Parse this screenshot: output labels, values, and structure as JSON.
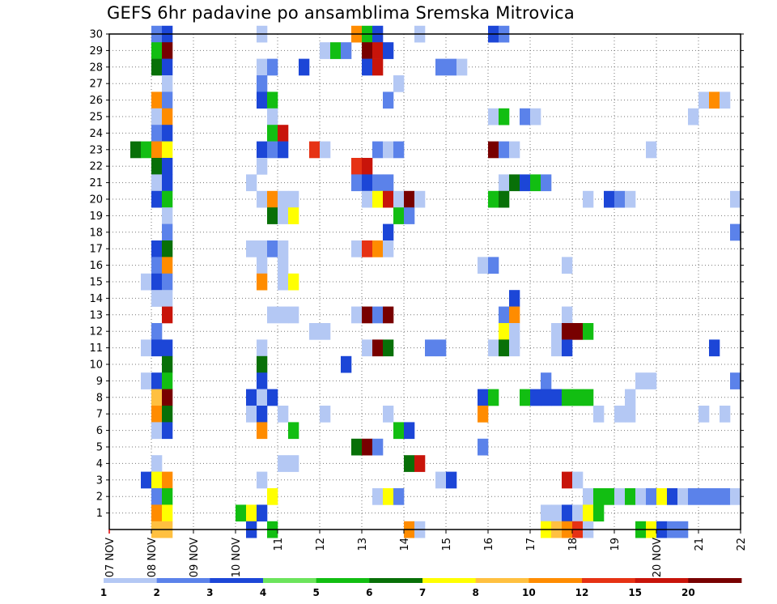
{
  "chart_data": {
    "type": "heatmap",
    "title": "GEFS 6hr padavine po ansamblima Sremska Mitrovica",
    "x_ticks": [
      "07 NOV",
      "08 NOV",
      "09 NOV",
      "10 NOV",
      "11",
      "12",
      "13",
      "14",
      "15",
      "16",
      "17",
      "18",
      "19",
      "20 NOV",
      "21",
      "22"
    ],
    "y_ticks": [
      "1",
      "2",
      "3",
      "4",
      "5",
      "6",
      "7",
      "8",
      "9",
      "10",
      "11",
      "12",
      "13",
      "14",
      "15",
      "16",
      "17",
      "18",
      "19",
      "20",
      "21",
      "22",
      "23",
      "24",
      "25",
      "26",
      "27",
      "28",
      "29",
      "30"
    ],
    "xlim": [
      0,
      15
    ],
    "ylim": [
      0,
      30
    ],
    "grid": true,
    "colorbar": {
      "labels": [
        "1",
        "2",
        "3",
        "4",
        "5",
        "6",
        "7",
        "8",
        "10",
        "12",
        "15",
        "20"
      ],
      "colors": [
        "#b4c8f4",
        "#5b82ea",
        "#1c46d7",
        "#6ce45c",
        "#12be12",
        "#087008",
        "#ffff00",
        "#ffc040",
        "#ff8c00",
        "#e63214",
        "#c8140a",
        "#780000"
      ]
    },
    "cells": [
      [
        1.0,
        30,
        1
      ],
      [
        1.25,
        30,
        2
      ],
      [
        3.5,
        30,
        0
      ],
      [
        5.75,
        30,
        8
      ],
      [
        6.0,
        30,
        4
      ],
      [
        6.25,
        30,
        2
      ],
      [
        7.25,
        30,
        0
      ],
      [
        9.0,
        30,
        2
      ],
      [
        9.25,
        30,
        1
      ],
      [
        1.0,
        29,
        4
      ],
      [
        1.25,
        29,
        11
      ],
      [
        5.0,
        29,
        0
      ],
      [
        5.25,
        29,
        4
      ],
      [
        5.5,
        29,
        1
      ],
      [
        6.0,
        29,
        11
      ],
      [
        6.25,
        29,
        10
      ],
      [
        6.5,
        29,
        2
      ],
      [
        1.0,
        28,
        5
      ],
      [
        1.25,
        28,
        2
      ],
      [
        3.5,
        28,
        0
      ],
      [
        3.75,
        28,
        1
      ],
      [
        4.5,
        28,
        2
      ],
      [
        6.0,
        28,
        2
      ],
      [
        6.25,
        28,
        10
      ],
      [
        7.75,
        28,
        1
      ],
      [
        8.0,
        28,
        1
      ],
      [
        8.25,
        28,
        0
      ],
      [
        1.25,
        27,
        0
      ],
      [
        3.5,
        27,
        1
      ],
      [
        6.75,
        27,
        0
      ],
      [
        1.0,
        26,
        8
      ],
      [
        1.25,
        26,
        1
      ],
      [
        3.5,
        26,
        2
      ],
      [
        3.75,
        26,
        4
      ],
      [
        6.5,
        26,
        1
      ],
      [
        14.0,
        26,
        0
      ],
      [
        14.25,
        26,
        8
      ],
      [
        14.5,
        26,
        0
      ],
      [
        1.0,
        25,
        0
      ],
      [
        1.25,
        25,
        8
      ],
      [
        3.75,
        25,
        0
      ],
      [
        9.0,
        25,
        0
      ],
      [
        9.25,
        25,
        4
      ],
      [
        9.75,
        25,
        1
      ],
      [
        10.0,
        25,
        0
      ],
      [
        13.75,
        25,
        0
      ],
      [
        1.0,
        24,
        1
      ],
      [
        1.25,
        24,
        2
      ],
      [
        3.75,
        24,
        4
      ],
      [
        4.0,
        24,
        10
      ],
      [
        0.5,
        23,
        5
      ],
      [
        0.75,
        23,
        4
      ],
      [
        1.0,
        23,
        8
      ],
      [
        1.25,
        23,
        6
      ],
      [
        3.5,
        23,
        2
      ],
      [
        3.75,
        23,
        1
      ],
      [
        4.0,
        23,
        2
      ],
      [
        4.75,
        23,
        9
      ],
      [
        5.0,
        23,
        0
      ],
      [
        6.25,
        23,
        1
      ],
      [
        6.5,
        23,
        0
      ],
      [
        6.75,
        23,
        1
      ],
      [
        9.0,
        23,
        11
      ],
      [
        9.25,
        23,
        1
      ],
      [
        9.5,
        23,
        0
      ],
      [
        12.75,
        23,
        0
      ],
      [
        1.0,
        22,
        5
      ],
      [
        1.25,
        22,
        2
      ],
      [
        3.5,
        22,
        0
      ],
      [
        5.75,
        22,
        9
      ],
      [
        6.0,
        22,
        10
      ],
      [
        1.0,
        21,
        0
      ],
      [
        1.25,
        21,
        2
      ],
      [
        3.25,
        21,
        0
      ],
      [
        5.75,
        21,
        1
      ],
      [
        6.0,
        21,
        2
      ],
      [
        6.25,
        21,
        1
      ],
      [
        6.5,
        21,
        1
      ],
      [
        9.25,
        21,
        0
      ],
      [
        9.5,
        21,
        5
      ],
      [
        9.75,
        21,
        2
      ],
      [
        10.0,
        21,
        4
      ],
      [
        10.25,
        21,
        1
      ],
      [
        1.0,
        20,
        2
      ],
      [
        1.25,
        20,
        4
      ],
      [
        3.5,
        20,
        0
      ],
      [
        3.75,
        20,
        8
      ],
      [
        4.0,
        20,
        0
      ],
      [
        4.25,
        20,
        0
      ],
      [
        6.0,
        20,
        0
      ],
      [
        6.25,
        20,
        6
      ],
      [
        6.5,
        20,
        10
      ],
      [
        6.75,
        20,
        0
      ],
      [
        7.0,
        20,
        11
      ],
      [
        7.25,
        20,
        0
      ],
      [
        9.0,
        20,
        4
      ],
      [
        9.25,
        20,
        5
      ],
      [
        11.25,
        20,
        0
      ],
      [
        11.75,
        20,
        2
      ],
      [
        12.0,
        20,
        1
      ],
      [
        12.25,
        20,
        0
      ],
      [
        14.75,
        20,
        0
      ],
      [
        1.25,
        19,
        0
      ],
      [
        3.75,
        19,
        5
      ],
      [
        4.0,
        19,
        0
      ],
      [
        4.25,
        19,
        6
      ],
      [
        6.75,
        19,
        4
      ],
      [
        7.0,
        19,
        1
      ],
      [
        1.25,
        18,
        1
      ],
      [
        6.5,
        18,
        2
      ],
      [
        14.75,
        18,
        1
      ],
      [
        1.0,
        17,
        2
      ],
      [
        1.25,
        17,
        5
      ],
      [
        3.25,
        17,
        0
      ],
      [
        3.5,
        17,
        0
      ],
      [
        3.75,
        17,
        1
      ],
      [
        4.0,
        17,
        0
      ],
      [
        5.75,
        17,
        0
      ],
      [
        6.0,
        17,
        9
      ],
      [
        6.25,
        17,
        8
      ],
      [
        6.5,
        17,
        0
      ],
      [
        1.0,
        16,
        1
      ],
      [
        1.25,
        16,
        8
      ],
      [
        3.5,
        16,
        0
      ],
      [
        4.0,
        16,
        0
      ],
      [
        8.75,
        16,
        0
      ],
      [
        9.0,
        16,
        1
      ],
      [
        10.75,
        16,
        0
      ],
      [
        0.75,
        15,
        0
      ],
      [
        1.0,
        15,
        2
      ],
      [
        1.25,
        15,
        1
      ],
      [
        3.5,
        15,
        8
      ],
      [
        4.0,
        15,
        0
      ],
      [
        4.25,
        15,
        6
      ],
      [
        1.0,
        14,
        0
      ],
      [
        1.25,
        14,
        0
      ],
      [
        9.5,
        14,
        2
      ],
      [
        1.25,
        13,
        10
      ],
      [
        3.75,
        13,
        0
      ],
      [
        4.0,
        13,
        0
      ],
      [
        4.25,
        13,
        0
      ],
      [
        5.75,
        13,
        0
      ],
      [
        6.0,
        13,
        11
      ],
      [
        6.25,
        13,
        1
      ],
      [
        6.5,
        13,
        11
      ],
      [
        9.25,
        13,
        1
      ],
      [
        9.5,
        13,
        8
      ],
      [
        10.75,
        13,
        0
      ],
      [
        1.0,
        12,
        1
      ],
      [
        4.75,
        12,
        0
      ],
      [
        5.0,
        12,
        0
      ],
      [
        9.25,
        12,
        6
      ],
      [
        9.5,
        12,
        0
      ],
      [
        10.5,
        12,
        0
      ],
      [
        10.75,
        12,
        11
      ],
      [
        11.0,
        12,
        11
      ],
      [
        11.25,
        12,
        4
      ],
      [
        0.75,
        11,
        0
      ],
      [
        1.0,
        11,
        2
      ],
      [
        1.25,
        11,
        2
      ],
      [
        3.5,
        11,
        0
      ],
      [
        6.0,
        11,
        0
      ],
      [
        6.25,
        11,
        11
      ],
      [
        6.5,
        11,
        5
      ],
      [
        7.5,
        11,
        1
      ],
      [
        7.75,
        11,
        1
      ],
      [
        9.0,
        11,
        0
      ],
      [
        9.25,
        11,
        5
      ],
      [
        9.5,
        11,
        0
      ],
      [
        10.5,
        11,
        0
      ],
      [
        10.75,
        11,
        2
      ],
      [
        14.25,
        11,
        2
      ],
      [
        1.25,
        10,
        5
      ],
      [
        3.5,
        10,
        5
      ],
      [
        5.5,
        10,
        2
      ],
      [
        0.75,
        9,
        0
      ],
      [
        1.0,
        9,
        2
      ],
      [
        1.25,
        9,
        4
      ],
      [
        3.5,
        9,
        2
      ],
      [
        10.25,
        9,
        1
      ],
      [
        12.5,
        9,
        0
      ],
      [
        12.75,
        9,
        0
      ],
      [
        14.75,
        9,
        1
      ],
      [
        1.0,
        8,
        7
      ],
      [
        1.25,
        8,
        11
      ],
      [
        3.25,
        8,
        2
      ],
      [
        3.5,
        8,
        0
      ],
      [
        3.75,
        8,
        2
      ],
      [
        8.75,
        8,
        2
      ],
      [
        9.0,
        8,
        4
      ],
      [
        9.75,
        8,
        4
      ],
      [
        10.0,
        8,
        2
      ],
      [
        10.25,
        8,
        2
      ],
      [
        10.5,
        8,
        2
      ],
      [
        10.75,
        8,
        4
      ],
      [
        11.0,
        8,
        4
      ],
      [
        11.25,
        8,
        4
      ],
      [
        12.25,
        8,
        0
      ],
      [
        1.0,
        7,
        8
      ],
      [
        1.25,
        7,
        5
      ],
      [
        3.25,
        7,
        0
      ],
      [
        3.5,
        7,
        2
      ],
      [
        4.0,
        7,
        0
      ],
      [
        5.0,
        7,
        0
      ],
      [
        6.5,
        7,
        0
      ],
      [
        8.75,
        7,
        8
      ],
      [
        11.5,
        7,
        0
      ],
      [
        12.0,
        7,
        0
      ],
      [
        12.25,
        7,
        0
      ],
      [
        14.0,
        7,
        0
      ],
      [
        14.5,
        7,
        0
      ],
      [
        1.0,
        6,
        0
      ],
      [
        1.25,
        6,
        2
      ],
      [
        3.5,
        6,
        8
      ],
      [
        4.25,
        6,
        4
      ],
      [
        6.75,
        6,
        4
      ],
      [
        7.0,
        6,
        2
      ],
      [
        5.75,
        5,
        5
      ],
      [
        6.0,
        5,
        11
      ],
      [
        6.25,
        5,
        1
      ],
      [
        8.75,
        5,
        1
      ],
      [
        1.0,
        4,
        0
      ],
      [
        4.0,
        4,
        0
      ],
      [
        4.25,
        4,
        0
      ],
      [
        7.0,
        4,
        5
      ],
      [
        7.25,
        4,
        10
      ],
      [
        0.75,
        3,
        2
      ],
      [
        1.0,
        3,
        6
      ],
      [
        1.25,
        3,
        8
      ],
      [
        3.5,
        3,
        0
      ],
      [
        7.75,
        3,
        0
      ],
      [
        8.0,
        3,
        2
      ],
      [
        10.75,
        3,
        10
      ],
      [
        11.0,
        3,
        0
      ],
      [
        1.0,
        2,
        1
      ],
      [
        1.25,
        2,
        4
      ],
      [
        3.75,
        2,
        6
      ],
      [
        6.25,
        2,
        0
      ],
      [
        6.5,
        2,
        6
      ],
      [
        6.75,
        2,
        1
      ],
      [
        11.25,
        2,
        0
      ],
      [
        11.5,
        2,
        4
      ],
      [
        11.75,
        2,
        4
      ],
      [
        12.0,
        2,
        0
      ],
      [
        12.25,
        2,
        4
      ],
      [
        12.5,
        2,
        0
      ],
      [
        12.75,
        2,
        1
      ],
      [
        13.0,
        2,
        6
      ],
      [
        13.25,
        2,
        2
      ],
      [
        13.5,
        2,
        0
      ],
      [
        13.75,
        2,
        1
      ],
      [
        14.0,
        2,
        1
      ],
      [
        14.25,
        2,
        1
      ],
      [
        14.5,
        2,
        1
      ],
      [
        14.75,
        2,
        0
      ],
      [
        1.0,
        1,
        8
      ],
      [
        1.25,
        1,
        6
      ],
      [
        3.0,
        1,
        4
      ],
      [
        3.25,
        1,
        6
      ],
      [
        3.5,
        1,
        2
      ],
      [
        10.25,
        1,
        0
      ],
      [
        10.5,
        1,
        0
      ],
      [
        10.75,
        1,
        2
      ],
      [
        11.0,
        1,
        0
      ],
      [
        11.25,
        1,
        6
      ],
      [
        11.5,
        1,
        4
      ],
      [
        1.0,
        0,
        7
      ],
      [
        1.25,
        0,
        7
      ],
      [
        3.25,
        0,
        2
      ],
      [
        3.75,
        0,
        4
      ],
      [
        7.0,
        0,
        8
      ],
      [
        7.25,
        0,
        0
      ],
      [
        10.25,
        0,
        6
      ],
      [
        10.5,
        0,
        7
      ],
      [
        10.75,
        0,
        8
      ],
      [
        11.0,
        0,
        9
      ],
      [
        11.25,
        0,
        0
      ],
      [
        12.5,
        0,
        4
      ],
      [
        12.75,
        0,
        6
      ],
      [
        13.0,
        0,
        2
      ],
      [
        13.25,
        0,
        1
      ],
      [
        13.5,
        0,
        1
      ]
    ]
  }
}
